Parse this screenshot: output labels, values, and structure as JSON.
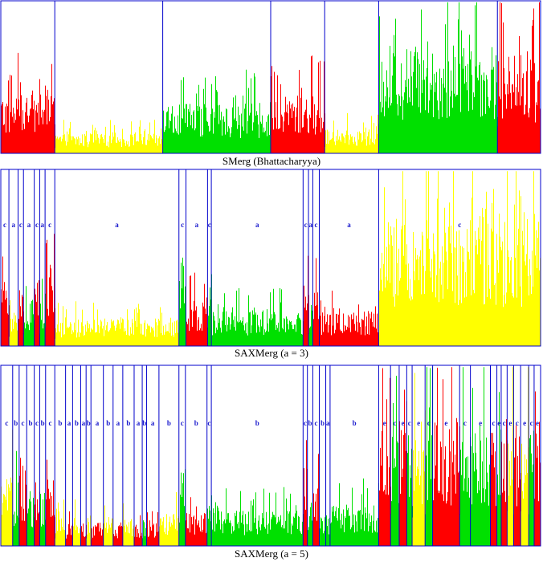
{
  "colors": {
    "low": "#ff0000",
    "mid": "#ffff00",
    "high": "#00e000",
    "segment_line": "#0000cc",
    "frame": "#0000cc",
    "label": "#1a1acd"
  },
  "chart_data": [
    {
      "type": "bar",
      "caption": "SMerg (Bhattacharyya)",
      "x_range": [
        0,
        100
      ],
      "ylim": [
        0,
        1
      ],
      "segments": [
        {
          "start": 0,
          "end": 10,
          "color": "red",
          "level": 0.3
        },
        {
          "start": 10,
          "end": 30,
          "color": "yellow",
          "level": 0.1
        },
        {
          "start": 30,
          "end": 50,
          "color": "green",
          "level": 0.25
        },
        {
          "start": 50,
          "end": 60,
          "color": "red",
          "level": 0.3
        },
        {
          "start": 60,
          "end": 70,
          "color": "yellow",
          "level": 0.12
        },
        {
          "start": 70,
          "end": 92,
          "color": "green",
          "level": 0.55
        },
        {
          "start": 92,
          "end": 100,
          "color": "red",
          "level": 0.5
        }
      ]
    },
    {
      "type": "bar",
      "caption": "SAXMerg (a = 3)",
      "x_range": [
        0,
        100
      ],
      "ylim": [
        0,
        1
      ],
      "segments": [
        {
          "start": 0,
          "end": 1.5,
          "label": "c",
          "color": "red",
          "level": 0.3
        },
        {
          "start": 1.5,
          "end": 3.2,
          "label": "a",
          "color": "yellow",
          "level": 0.15
        },
        {
          "start": 3.2,
          "end": 4.2,
          "label": "c",
          "color": "red",
          "level": 0.3
        },
        {
          "start": 4.2,
          "end": 6.2,
          "label": "a",
          "color": "green",
          "level": 0.2
        },
        {
          "start": 6.2,
          "end": 7.2,
          "label": "c",
          "color": "red",
          "level": 0.3
        },
        {
          "start": 7.2,
          "end": 8.2,
          "label": "a",
          "color": "green",
          "level": 0.2
        },
        {
          "start": 8.2,
          "end": 10,
          "label": "c",
          "color": "red",
          "level": 0.3
        },
        {
          "start": 10,
          "end": 33,
          "label": "a",
          "color": "yellow",
          "level": 0.12
        },
        {
          "start": 33,
          "end": 34.3,
          "label": "c",
          "color": "green",
          "level": 0.3
        },
        {
          "start": 34.3,
          "end": 38.3,
          "label": "a",
          "color": "red",
          "level": 0.2
        },
        {
          "start": 38.3,
          "end": 39,
          "label": "c",
          "color": "green",
          "level": 0.3
        },
        {
          "start": 39,
          "end": 56,
          "label": "a",
          "color": "green",
          "level": 0.15
        },
        {
          "start": 56,
          "end": 57,
          "label": "c",
          "color": "red",
          "level": 0.4
        },
        {
          "start": 57,
          "end": 57.8,
          "label": "a",
          "color": "green",
          "level": 0.2
        },
        {
          "start": 57.8,
          "end": 59,
          "label": "c",
          "color": "red",
          "level": 0.3
        },
        {
          "start": 59,
          "end": 70,
          "label": "a",
          "color": "red",
          "level": 0.15
        },
        {
          "start": 70,
          "end": 100,
          "label": "c",
          "color": "yellow",
          "level": 0.55
        }
      ]
    },
    {
      "type": "bar",
      "caption": "SAXMerg (a = 5)",
      "x_range": [
        0,
        100
      ],
      "ylim": [
        0,
        1
      ],
      "segments": [
        {
          "start": 0,
          "end": 2.2,
          "label": "c",
          "color": "yellow",
          "level": 0.3
        },
        {
          "start": 2.2,
          "end": 3.4,
          "label": "b",
          "color": "green",
          "level": 0.25
        },
        {
          "start": 3.4,
          "end": 4.8,
          "label": "c",
          "color": "red",
          "level": 0.3
        },
        {
          "start": 4.8,
          "end": 6.2,
          "label": "b",
          "color": "green",
          "level": 0.25
        },
        {
          "start": 6.2,
          "end": 7.2,
          "label": "c",
          "color": "red",
          "level": 0.3
        },
        {
          "start": 7.2,
          "end": 8.3,
          "label": "b",
          "color": "green",
          "level": 0.25
        },
        {
          "start": 8.3,
          "end": 10,
          "label": "c",
          "color": "red",
          "level": 0.3
        },
        {
          "start": 10,
          "end": 12,
          "label": "b",
          "color": "yellow",
          "level": 0.12
        },
        {
          "start": 12,
          "end": 13.3,
          "label": "a",
          "color": "red",
          "level": 0.1
        },
        {
          "start": 13.3,
          "end": 14.8,
          "label": "b",
          "color": "yellow",
          "level": 0.12
        },
        {
          "start": 14.8,
          "end": 15.8,
          "label": "a",
          "color": "red",
          "level": 0.1
        },
        {
          "start": 15.8,
          "end": 16.7,
          "label": "b",
          "color": "yellow",
          "level": 0.12
        },
        {
          "start": 16.7,
          "end": 19,
          "label": "a",
          "color": "red",
          "level": 0.1
        },
        {
          "start": 19,
          "end": 20.8,
          "label": "b",
          "color": "yellow",
          "level": 0.12
        },
        {
          "start": 20.8,
          "end": 22.6,
          "label": "a",
          "color": "red",
          "level": 0.1
        },
        {
          "start": 22.6,
          "end": 24.7,
          "label": "b",
          "color": "yellow",
          "level": 0.12
        },
        {
          "start": 24.7,
          "end": 26.2,
          "label": "a",
          "color": "red",
          "level": 0.1
        },
        {
          "start": 26.2,
          "end": 27,
          "label": "b",
          "color": "green",
          "level": 0.12
        },
        {
          "start": 27,
          "end": 29.3,
          "label": "a",
          "color": "red",
          "level": 0.1
        },
        {
          "start": 29.3,
          "end": 33,
          "label": "b",
          "color": "yellow",
          "level": 0.14
        },
        {
          "start": 33,
          "end": 34.2,
          "label": "c",
          "color": "green",
          "level": 0.3
        },
        {
          "start": 34.2,
          "end": 38.2,
          "label": "b",
          "color": "red",
          "level": 0.15
        },
        {
          "start": 38.2,
          "end": 39,
          "label": "c",
          "color": "green",
          "level": 0.3
        },
        {
          "start": 39,
          "end": 56,
          "label": "b",
          "color": "green",
          "level": 0.15
        },
        {
          "start": 56,
          "end": 56.8,
          "label": "c",
          "color": "red",
          "level": 0.35
        },
        {
          "start": 56.8,
          "end": 57.8,
          "label": "b",
          "color": "green",
          "level": 0.2
        },
        {
          "start": 57.8,
          "end": 59,
          "label": "c",
          "color": "red",
          "level": 0.25
        },
        {
          "start": 59,
          "end": 60.2,
          "label": "b",
          "color": "green",
          "level": 0.15
        },
        {
          "start": 60.2,
          "end": 61,
          "label": "a",
          "color": "green",
          "level": 0.15
        },
        {
          "start": 61,
          "end": 70,
          "label": "b",
          "color": "green",
          "level": 0.18
        },
        {
          "start": 70,
          "end": 72.2,
          "label": "e",
          "color": "red",
          "level": 0.55
        },
        {
          "start": 72.2,
          "end": 73.8,
          "label": "c",
          "color": "green",
          "level": 0.5
        },
        {
          "start": 73.8,
          "end": 75.2,
          "label": "e",
          "color": "red",
          "level": 0.55
        },
        {
          "start": 75.2,
          "end": 76.2,
          "label": "c",
          "color": "green",
          "level": 0.5
        },
        {
          "start": 76.2,
          "end": 78.6,
          "label": "e",
          "color": "yellow",
          "level": 0.45
        },
        {
          "start": 78.6,
          "end": 80,
          "label": "c",
          "color": "green",
          "level": 0.5
        },
        {
          "start": 80,
          "end": 85,
          "label": "e",
          "color": "red",
          "level": 0.55
        },
        {
          "start": 85,
          "end": 87,
          "label": "c",
          "color": "green",
          "level": 0.5
        },
        {
          "start": 87,
          "end": 90.7,
          "label": "e",
          "color": "green",
          "level": 0.55
        },
        {
          "start": 90.7,
          "end": 91.9,
          "label": "c",
          "color": "red",
          "level": 0.5
        },
        {
          "start": 91.9,
          "end": 92.7,
          "label": "e",
          "color": "green",
          "level": 0.55
        },
        {
          "start": 92.7,
          "end": 93.8,
          "label": "c",
          "color": "red",
          "level": 0.5
        },
        {
          "start": 93.8,
          "end": 95,
          "label": "e",
          "color": "yellow",
          "level": 0.55
        },
        {
          "start": 95,
          "end": 96.3,
          "label": "c",
          "color": "red",
          "level": 0.5
        },
        {
          "start": 96.3,
          "end": 97.8,
          "label": "e",
          "color": "yellow",
          "level": 0.55
        },
        {
          "start": 97.8,
          "end": 98.8,
          "label": "c",
          "color": "green",
          "level": 0.5
        },
        {
          "start": 98.8,
          "end": 100,
          "label": "e",
          "color": "red",
          "level": 0.55
        }
      ]
    }
  ]
}
